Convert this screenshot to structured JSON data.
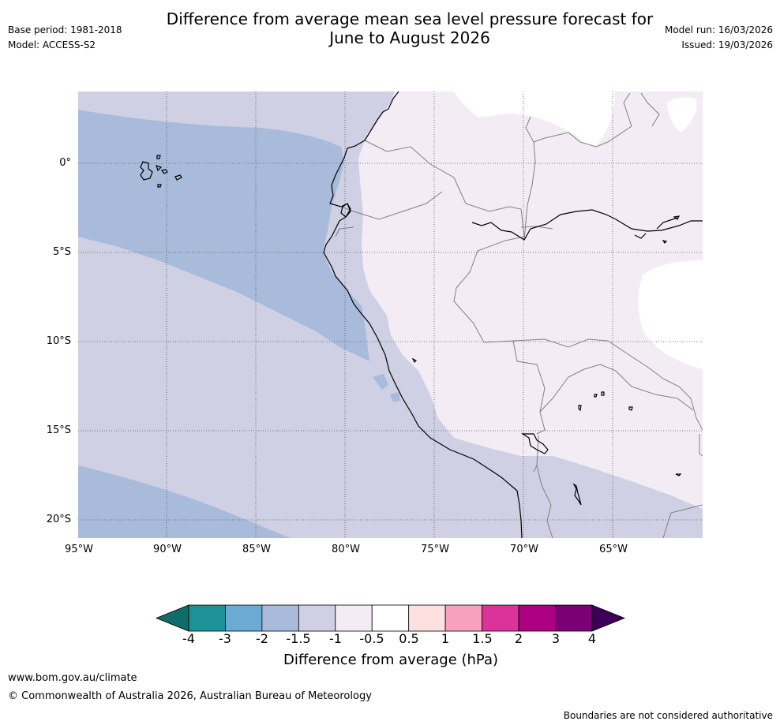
{
  "header": {
    "base_period": "Base period: 1981-2018",
    "model": "Model: ACCESS-S2",
    "title_line1": "Difference from average mean sea level pressure forecast for",
    "title_line2": "June to August 2026",
    "model_run": "Model run: 16/03/2026",
    "issued": "Issued: 19/03/2026"
  },
  "map": {
    "latitude_labels": [
      "0°",
      "5°S",
      "10°S",
      "15°S",
      "20°S"
    ],
    "longitude_labels": [
      "95°W",
      "90°W",
      "85°W",
      "80°W",
      "75°W",
      "70°W",
      "65°W"
    ],
    "colors": {
      "ocean_minus1_5": "#cfd0e4",
      "ocean_minus2": "#a8bbdb",
      "land_minus1": "#f3ecf5",
      "land_minus0_5": "#ffffff",
      "coastline": "#000000",
      "border": "#808080",
      "grid": "#555555"
    }
  },
  "colorbar": {
    "ticks": [
      "-4",
      "-3",
      "-2",
      "-1.5",
      "-1",
      "-0.5",
      "0.5",
      "1",
      "1.5",
      "2",
      "3",
      "4"
    ],
    "colors": [
      "#0f6c68",
      "#1c9297",
      "#6aaad3",
      "#a8bbdb",
      "#cfd0e4",
      "#f3ecf5",
      "#ffffff",
      "#fde0e0",
      "#f7a1bf",
      "#dc339b",
      "#ac0080",
      "#7b0075",
      "#3d0057"
    ],
    "label": "Difference from average (hPa)"
  },
  "footer": {
    "url": "www.bom.gov.au/climate",
    "copyright": "© Commonwealth of Australia 2026, Australian Bureau of Meteorology",
    "disclaimer": "Boundaries are not considered authoritative"
  }
}
